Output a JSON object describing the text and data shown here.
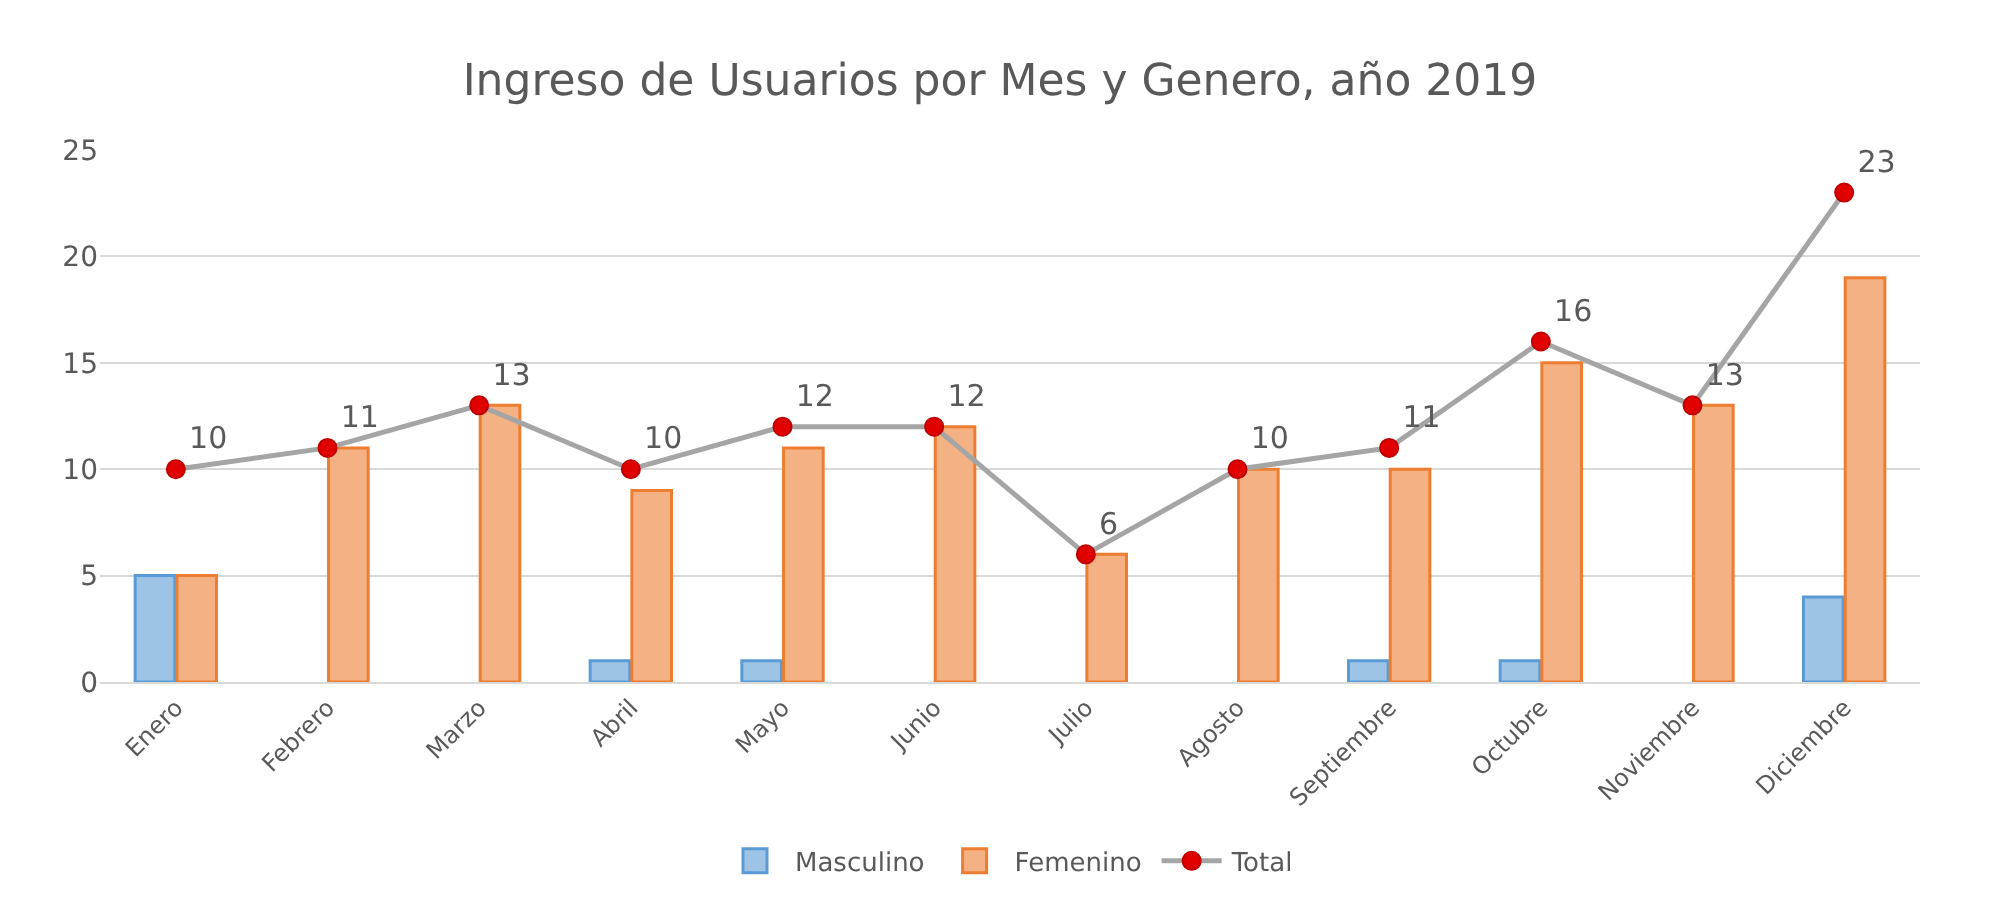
{
  "chart_data": {
    "type": "bar",
    "title": "Ingreso de Usuarios por Mes y Genero, año 2019",
    "categories": [
      "Enero",
      "Febrero",
      "Marzo",
      "Abril",
      "Mayo",
      "Junio",
      "Julio",
      "Agosto",
      "Septiembre",
      "Octubre",
      "Noviembre",
      "Diciembre"
    ],
    "series": [
      {
        "name": "Masculino",
        "color": "#9dc3e6",
        "values": [
          5,
          0,
          0,
          1,
          1,
          0,
          0,
          0,
          1,
          1,
          0,
          4
        ]
      },
      {
        "name": "Femenino",
        "color": "#f4b183",
        "values": [
          5,
          11,
          13,
          9,
          11,
          12,
          6,
          10,
          10,
          15,
          13,
          19
        ]
      },
      {
        "name": "Total",
        "type": "line",
        "color": "#a5a5a5",
        "marker": "circle",
        "values": [
          10,
          11,
          13,
          10,
          12,
          12,
          6,
          10,
          11,
          16,
          13,
          23
        ],
        "value_labels": [
          "10",
          "11",
          "13",
          "10",
          "12",
          "12",
          "6",
          "10",
          "11",
          "16",
          "13",
          "23"
        ]
      }
    ],
    "ylim": [
      0,
      25
    ],
    "yticks": [
      0,
      5,
      10,
      15,
      20,
      25
    ],
    "grid": "y",
    "legend": "bottom"
  }
}
